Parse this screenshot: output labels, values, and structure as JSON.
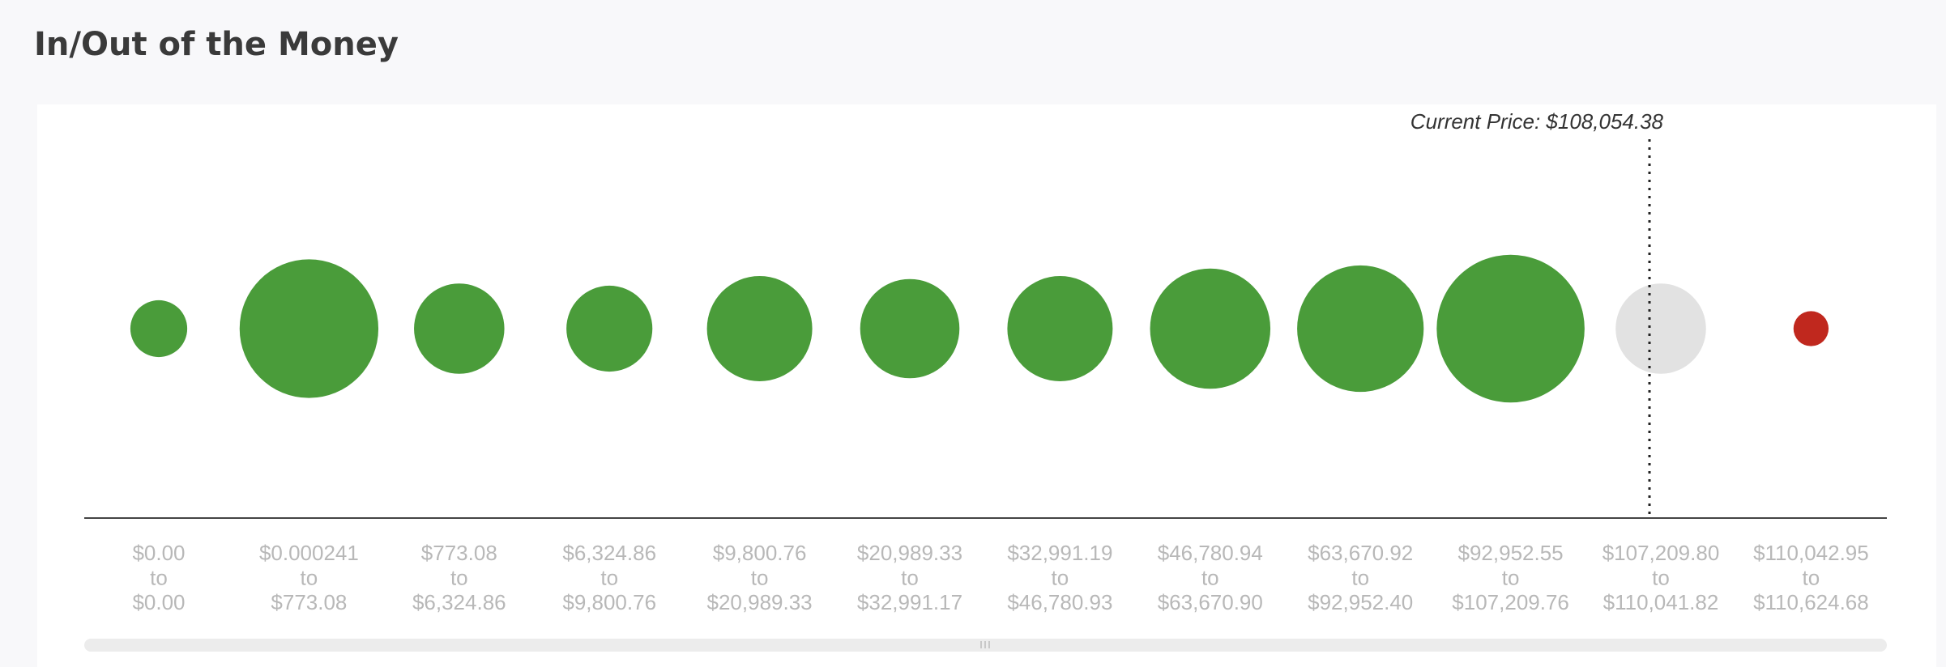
{
  "chart_data": {
    "type": "bubble",
    "title": "In/Out of the Money",
    "annotation": "Current Price: $108,054.38",
    "categories": [
      [
        "$0.00",
        "to",
        "$0.00"
      ],
      [
        "$0.000241",
        "to",
        "$773.08"
      ],
      [
        "$773.08",
        "to",
        "$6,324.86"
      ],
      [
        "$6,324.86",
        "to",
        "$9,800.76"
      ],
      [
        "$9,800.76",
        "to",
        "$20,989.33"
      ],
      [
        "$20,989.33",
        "to",
        "$32,991.17"
      ],
      [
        "$32,991.19",
        "to",
        "$46,780.93"
      ],
      [
        "$46,780.94",
        "to",
        "$63,670.90"
      ],
      [
        "$63,670.92",
        "to",
        "$92,952.40"
      ],
      [
        "$92,952.55",
        "to",
        "$107,209.76"
      ],
      [
        "$107,209.80",
        "to",
        "$110,041.82"
      ],
      [
        "$110,042.95",
        "to",
        "$110,624.68"
      ]
    ],
    "values": [
      21,
      125,
      53,
      48,
      72,
      64,
      72,
      94,
      104,
      142,
      53,
      8
    ],
    "colors": [
      "#4a9c3a",
      "#4a9c3a",
      "#4a9c3a",
      "#4a9c3a",
      "#4a9c3a",
      "#4a9c3a",
      "#4a9c3a",
      "#4a9c3a",
      "#4a9c3a",
      "#4a9c3a",
      "#e2e2e2",
      "#c0281e"
    ]
  }
}
